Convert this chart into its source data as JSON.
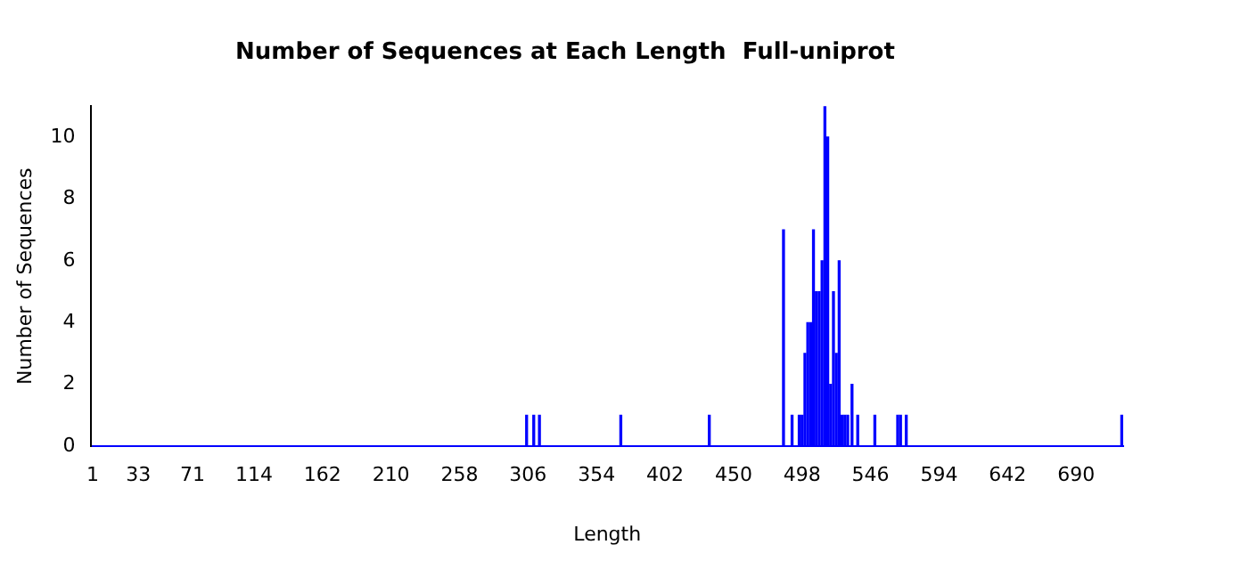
{
  "chart_data": {
    "type": "bar",
    "title": "Number of Sequences at Each Length  Full-uniprot",
    "xlabel": "Length",
    "ylabel": "Number of Sequences",
    "x": [
      305,
      310,
      314,
      371,
      433,
      485,
      491,
      496,
      498,
      500,
      502,
      504,
      506,
      508,
      510,
      512,
      514,
      516,
      518,
      520,
      522,
      524,
      526,
      528,
      530,
      533,
      537,
      549,
      565,
      567,
      571,
      722
    ],
    "series": [
      {
        "color": "#0000ff",
        "values": [
          1,
          1,
          1,
          1,
          1,
          7,
          1,
          1,
          1,
          3,
          4,
          4,
          7,
          5,
          5,
          6,
          11,
          10,
          2,
          5,
          3,
          6,
          1,
          1,
          1,
          2,
          1,
          1,
          1,
          1,
          1,
          1
        ]
      }
    ],
    "xlim": [
      0,
      723
    ],
    "xticks": [
      1,
      33,
      71,
      114,
      162,
      210,
      258,
      306,
      354,
      402,
      450,
      498,
      546,
      594,
      642,
      690
    ],
    "ylim": [
      0,
      11
    ],
    "yticks": [
      0,
      2,
      4,
      6,
      8,
      10
    ],
    "grid": false,
    "legend": false
  }
}
